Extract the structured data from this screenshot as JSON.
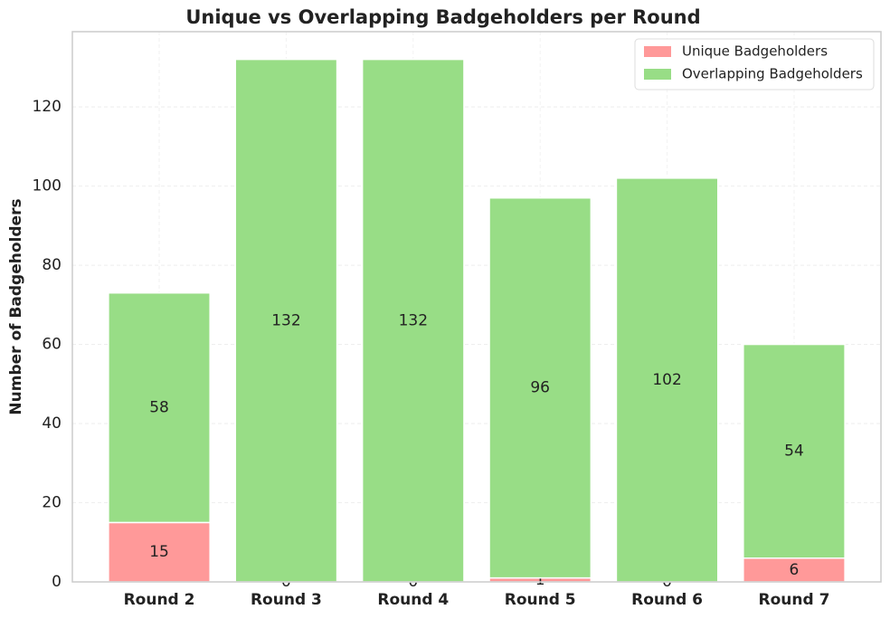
{
  "chart_data": {
    "type": "stacked_bar",
    "title": "Unique vs Overlapping Badgeholders per Round",
    "y_label": "Number of Badgeholders",
    "categories": [
      "Round 2",
      "Round 3",
      "Round 4",
      "Round 5",
      "Round 6",
      "Round 7"
    ],
    "series": [
      {
        "name": "Unique Badgeholders",
        "color": "#ff9999",
        "values": [
          15,
          0,
          0,
          1,
          0,
          6
        ]
      },
      {
        "name": "Overlapping Badgeholders",
        "color": "#98dd86",
        "values": [
          58,
          132,
          132,
          96,
          102,
          54
        ]
      }
    ],
    "ylim": [
      0,
      139
    ],
    "yticks": [
      0,
      20,
      40,
      60,
      80,
      100,
      120
    ],
    "grid": true,
    "legend": "upper-right"
  }
}
